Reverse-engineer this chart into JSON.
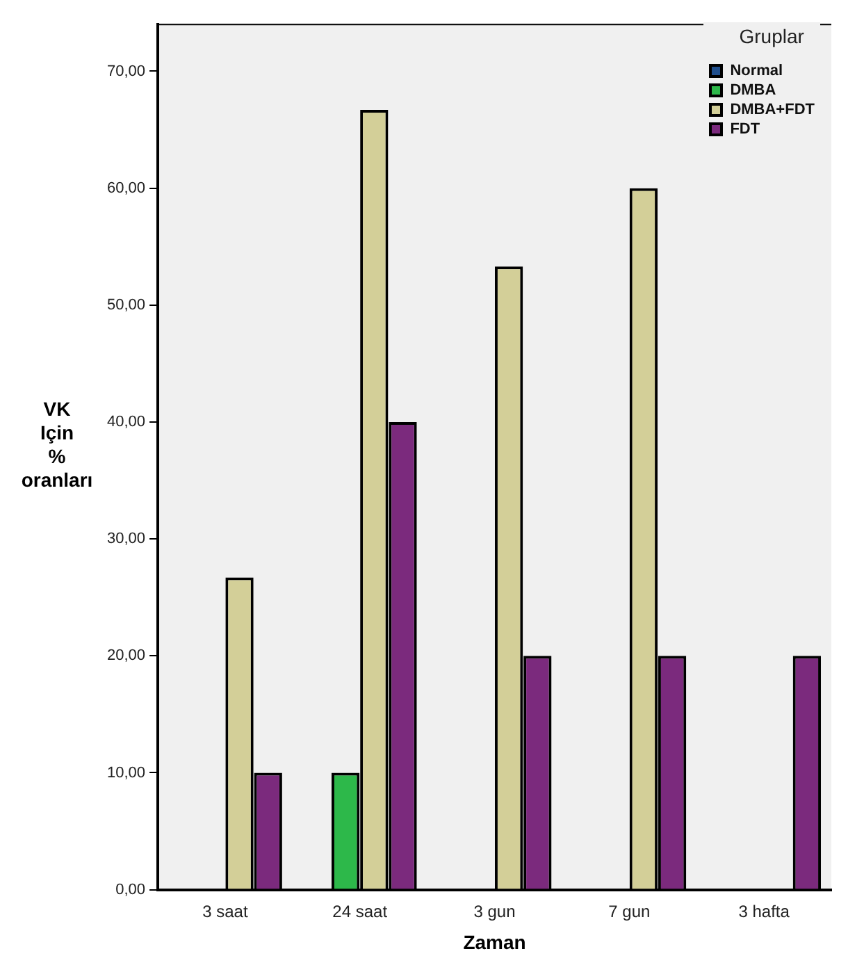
{
  "chart_data": {
    "type": "bar",
    "xlabel": "Zaman",
    "ylabel": "VK Için % oranları",
    "legend_title": "Gruplar",
    "legend": "top right",
    "grid": false,
    "categories": [
      "3 saat",
      "24 saat",
      "3 gun",
      "7 gun",
      "3 hafta"
    ],
    "series": [
      {
        "name": "Normal",
        "color": "#1f4e8c",
        "values": [
          0,
          0,
          0,
          0,
          0
        ]
      },
      {
        "name": "DMBA",
        "color": "#2db84a",
        "values": [
          0,
          10,
          0,
          0,
          0
        ]
      },
      {
        "name": "DMBA+FDT",
        "color": "#d3cf98",
        "values": [
          26.7,
          66.7,
          53.3,
          60,
          0
        ]
      },
      {
        "name": "FDT",
        "color": "#7b2a7d",
        "values": [
          10,
          40,
          20,
          20,
          20
        ]
      }
    ],
    "ylim": [
      0,
      74
    ],
    "yticks": [
      {
        "value": 0,
        "label": "0,00"
      },
      {
        "value": 10,
        "label": "10,00"
      },
      {
        "value": 20,
        "label": "20,00"
      },
      {
        "value": 30,
        "label": "30,00"
      },
      {
        "value": 40,
        "label": "40,00"
      },
      {
        "value": 50,
        "label": "50,00"
      },
      {
        "value": 60,
        "label": "60,00"
      },
      {
        "value": 70,
        "label": "70,00"
      }
    ]
  }
}
